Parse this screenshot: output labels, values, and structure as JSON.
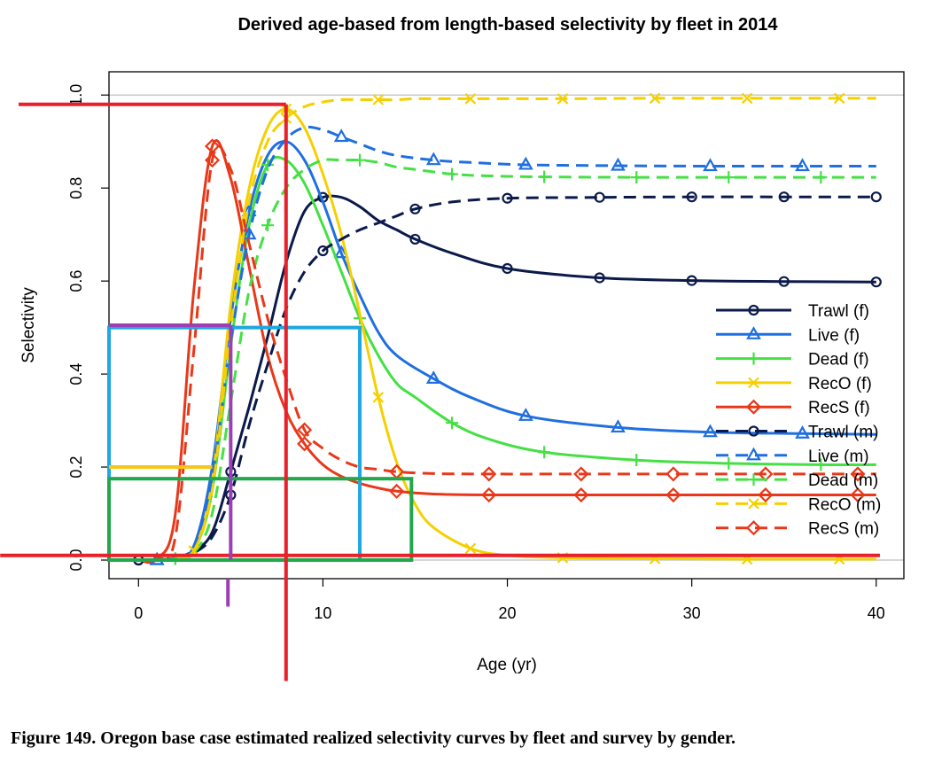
{
  "caption": "Figure 149.  Oregon base case estimated realized selectivity curves by fleet and survey by gender.",
  "chart_data": {
    "type": "line",
    "title": "Derived age-based from length-based selectivity by fleet in 2014",
    "xlabel": "Age (yr)",
    "ylabel": "Selectivity",
    "xlim": [
      -1.6,
      41.5
    ],
    "ylim": [
      -0.04,
      1.05
    ],
    "xticks": [
      "0",
      "10",
      "20",
      "30",
      "40"
    ],
    "yticks": [
      "0.0",
      "0.2",
      "0.4",
      "0.6",
      "0.8",
      "1.0"
    ],
    "reference_lines": [
      0,
      1
    ],
    "legend_position": "right",
    "series": [
      {
        "name": "Trawl (f)",
        "color": "#0b1a4a",
        "dash": "solid",
        "marker": "circle",
        "x": [
          0,
          1,
          2,
          3,
          4,
          5,
          6,
          7,
          8,
          9,
          10,
          11,
          12,
          13,
          14,
          15,
          17,
          20,
          25,
          30,
          35,
          40
        ],
        "y": [
          0,
          0,
          0.005,
          0.02,
          0.06,
          0.19,
          0.33,
          0.48,
          0.64,
          0.75,
          0.78,
          0.78,
          0.76,
          0.73,
          0.71,
          0.69,
          0.66,
          0.627,
          0.607,
          0.601,
          0.599,
          0.598
        ],
        "marker_x": [
          0,
          5,
          10,
          15,
          20,
          25,
          30,
          35,
          40
        ]
      },
      {
        "name": "Live (f)",
        "color": "#1f6fe0",
        "dash": "solid",
        "marker": "triangle",
        "x": [
          0,
          1,
          2,
          3,
          4,
          5,
          6,
          7,
          8,
          9,
          10,
          11,
          12,
          13,
          14,
          16,
          18,
          21,
          26,
          31,
          36,
          40
        ],
        "y": [
          0,
          0,
          0.005,
          0.03,
          0.2,
          0.52,
          0.75,
          0.87,
          0.9,
          0.86,
          0.77,
          0.66,
          0.57,
          0.49,
          0.44,
          0.39,
          0.35,
          0.31,
          0.285,
          0.275,
          0.272,
          0.27
        ],
        "marker_x": [
          1,
          6,
          11,
          16,
          21,
          26,
          31,
          36
        ]
      },
      {
        "name": "Dead (f)",
        "color": "#44e044",
        "dash": "solid",
        "marker": "plus",
        "x": [
          0,
          1,
          2,
          3,
          4,
          5,
          6,
          7,
          8,
          9,
          10,
          11,
          12,
          13,
          14,
          15,
          17,
          19,
          22,
          27,
          32,
          37,
          40
        ],
        "y": [
          0,
          0,
          0.003,
          0.02,
          0.15,
          0.46,
          0.72,
          0.85,
          0.86,
          0.81,
          0.72,
          0.62,
          0.52,
          0.44,
          0.38,
          0.35,
          0.295,
          0.26,
          0.232,
          0.215,
          0.208,
          0.205,
          0.205
        ],
        "marker_x": [
          2,
          7,
          12,
          17,
          22,
          27,
          32,
          37
        ]
      },
      {
        "name": "RecO (f)",
        "color": "#f5d000",
        "dash": "solid",
        "marker": "x",
        "x": [
          0,
          1,
          2,
          3,
          4,
          5,
          6,
          7,
          8,
          9,
          10,
          11,
          12,
          13,
          14,
          15,
          16,
          18,
          20,
          23,
          28,
          33,
          38,
          40
        ],
        "y": [
          0,
          0,
          0.003,
          0.02,
          0.17,
          0.55,
          0.8,
          0.93,
          0.97,
          0.93,
          0.83,
          0.7,
          0.53,
          0.35,
          0.21,
          0.12,
          0.07,
          0.025,
          0.01,
          0.005,
          0.003,
          0.002,
          0.002,
          0.002
        ],
        "marker_x": [
          3,
          8,
          13,
          18,
          23,
          28,
          33,
          38
        ]
      },
      {
        "name": "RecS (f)",
        "color": "#e8381a",
        "dash": "solid",
        "marker": "diamond",
        "x": [
          0,
          1,
          2,
          3,
          4,
          5,
          6,
          7,
          8,
          9,
          10,
          11,
          12,
          13,
          14,
          16,
          19,
          24,
          29,
          34,
          39,
          40
        ],
        "y": [
          0,
          0.003,
          0.1,
          0.58,
          0.89,
          0.82,
          0.63,
          0.44,
          0.32,
          0.25,
          0.205,
          0.18,
          0.165,
          0.155,
          0.148,
          0.142,
          0.14,
          0.14,
          0.14,
          0.14,
          0.14,
          0.14
        ],
        "marker_x": [
          4,
          9,
          14,
          19,
          24,
          29,
          34,
          39
        ]
      },
      {
        "name": "Trawl (m)",
        "color": "#0b1a4a",
        "dash": "dashed",
        "marker": "circle",
        "x": [
          0,
          1,
          2,
          3,
          4,
          5,
          6,
          7,
          8,
          9,
          10,
          11,
          12,
          13,
          14,
          15,
          17,
          20,
          25,
          30,
          35,
          40
        ],
        "y": [
          0,
          0,
          0.003,
          0.015,
          0.05,
          0.14,
          0.29,
          0.42,
          0.54,
          0.62,
          0.665,
          0.69,
          0.71,
          0.725,
          0.74,
          0.755,
          0.77,
          0.778,
          0.78,
          0.781,
          0.781,
          0.781
        ],
        "marker_x": [
          0,
          5,
          10,
          15,
          20,
          25,
          30,
          35,
          40
        ]
      },
      {
        "name": "Live (m)",
        "color": "#1f6fe0",
        "dash": "dashed",
        "marker": "triangle",
        "x": [
          0,
          1,
          2,
          3,
          4,
          5,
          6,
          7,
          8,
          9,
          10,
          11,
          12,
          13,
          14,
          16,
          18,
          21,
          26,
          31,
          36,
          40
        ],
        "y": [
          0,
          0,
          0.005,
          0.03,
          0.18,
          0.47,
          0.7,
          0.84,
          0.905,
          0.93,
          0.925,
          0.91,
          0.895,
          0.88,
          0.87,
          0.86,
          0.855,
          0.85,
          0.848,
          0.847,
          0.847,
          0.847
        ],
        "marker_x": [
          1,
          6,
          11,
          16,
          21,
          26,
          31,
          36
        ]
      },
      {
        "name": "Dead (m)",
        "color": "#44e044",
        "dash": "dashed",
        "marker": "plus",
        "x": [
          0,
          1,
          2,
          3,
          4,
          5,
          6,
          7,
          8,
          9,
          10,
          11,
          12,
          13,
          14,
          15,
          17,
          19,
          22,
          27,
          32,
          37,
          40
        ],
        "y": [
          0,
          0,
          0.003,
          0.015,
          0.1,
          0.34,
          0.58,
          0.72,
          0.8,
          0.84,
          0.86,
          0.86,
          0.86,
          0.855,
          0.845,
          0.84,
          0.83,
          0.826,
          0.824,
          0.823,
          0.823,
          0.823,
          0.823
        ],
        "marker_x": [
          2,
          7,
          12,
          17,
          22,
          27,
          32,
          37
        ]
      },
      {
        "name": "RecO (m)",
        "color": "#f5d000",
        "dash": "dashed",
        "marker": "x",
        "x": [
          0,
          1,
          2,
          3,
          4,
          5,
          6,
          7,
          8,
          9,
          10,
          11,
          12,
          13,
          14,
          15,
          16,
          18,
          20,
          23,
          28,
          33,
          38,
          40
        ],
        "y": [
          0,
          0,
          0.003,
          0.02,
          0.15,
          0.5,
          0.77,
          0.9,
          0.95,
          0.975,
          0.985,
          0.99,
          0.99,
          0.99,
          0.99,
          0.992,
          0.992,
          0.992,
          0.992,
          0.992,
          0.993,
          0.993,
          0.993,
          0.993
        ],
        "marker_x": [
          3,
          8,
          13,
          18,
          23,
          28,
          33,
          38
        ]
      },
      {
        "name": "RecS (m)",
        "color": "#e8381a",
        "dash": "dashed",
        "marker": "diamond",
        "x": [
          0,
          1,
          2,
          3,
          4,
          5,
          6,
          7,
          8,
          9,
          10,
          11,
          12,
          13,
          14,
          16,
          19,
          24,
          29,
          34,
          39,
          40
        ],
        "y": [
          0,
          0.003,
          0.05,
          0.45,
          0.86,
          0.84,
          0.68,
          0.52,
          0.39,
          0.28,
          0.24,
          0.215,
          0.2,
          0.195,
          0.19,
          0.186,
          0.185,
          0.185,
          0.185,
          0.185,
          0.185,
          0.185
        ],
        "marker_x": [
          4,
          9,
          14,
          19,
          24,
          29,
          34,
          39
        ]
      }
    ],
    "annotations": {
      "lines": [
        {
          "color": "#e8202a",
          "x1": -6.5,
          "y1": 0.98,
          "x2": 8.0,
          "y2": 0.98
        },
        {
          "color": "#e8202a",
          "x1": 8.0,
          "y1": 0.98,
          "x2": 8.0,
          "y2": -0.26
        },
        {
          "color": "#e8202a",
          "x1": -7.5,
          "y1": 0.01,
          "x2": 40.2,
          "y2": 0.01
        },
        {
          "color": "#9b3fb5",
          "x1": -1.6,
          "y1": 0.505,
          "x2": 5.0,
          "y2": 0.505
        },
        {
          "color": "#9b3fb5",
          "x1": 5.0,
          "y1": 0.505,
          "x2": 5.0,
          "y2": 0.0
        },
        {
          "color": "#9b3fb5",
          "x1": 4.85,
          "y1": -0.04,
          "x2": 4.85,
          "y2": -0.1
        },
        {
          "color": "#f5c518",
          "x1": -1.6,
          "y1": 0.2,
          "x2": 4.0,
          "y2": 0.2
        }
      ],
      "rects": [
        {
          "color": "#1ea7e0",
          "x1": -1.6,
          "y1": 0.0,
          "x2": 12.0,
          "y2": 0.5
        },
        {
          "color": "#22a84a",
          "x1": -1.6,
          "y1": 0.0,
          "x2": 14.8,
          "y2": 0.175
        }
      ]
    }
  }
}
